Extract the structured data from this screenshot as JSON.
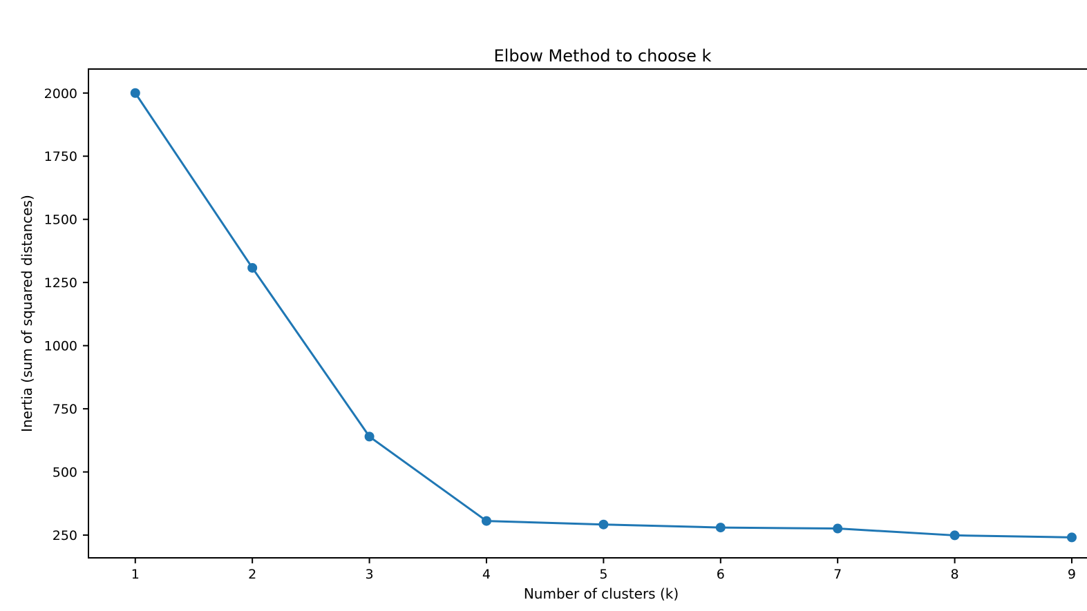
{
  "chart_data": {
    "type": "line",
    "title": "Elbow Method to choose k",
    "xlabel": "Number of clusters (k)",
    "ylabel": "Inertia (sum of squared distances)",
    "series": [
      {
        "name": "inertia",
        "x": [
          1,
          2,
          3,
          4,
          5,
          6,
          7,
          8,
          9
        ],
        "y": [
          2000,
          1308,
          640,
          306,
          292,
          280,
          276,
          249,
          241
        ]
      }
    ],
    "xticks": [
      1,
      2,
      3,
      4,
      5,
      6,
      7,
      8,
      9
    ],
    "yticks": [
      250,
      500,
      750,
      1000,
      1250,
      1500,
      1750,
      2000
    ],
    "xlim": [
      0.6,
      9.13
    ],
    "ylim": [
      160,
      2095
    ],
    "grid": false,
    "legend_position": "none",
    "line_color": "#1f77b4",
    "marker": "circle",
    "marker_color": "#1f77b4",
    "axis_color": "#000000",
    "background_color": "#ffffff"
  }
}
